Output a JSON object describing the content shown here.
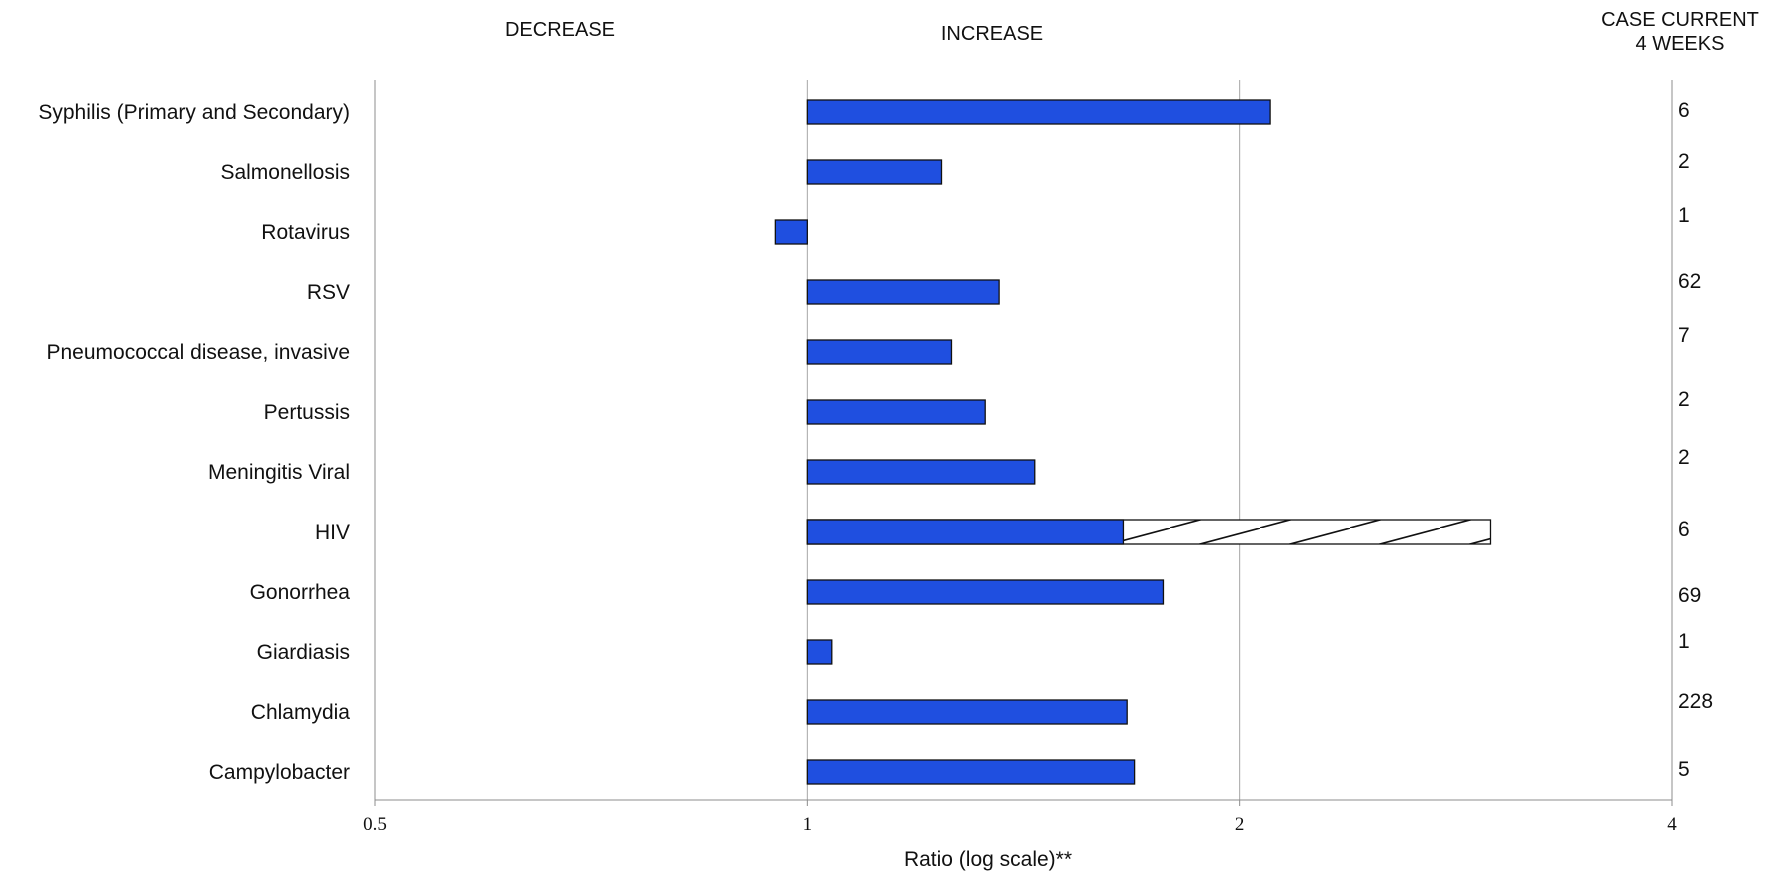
{
  "header": {
    "decrease_label": "DECREASE",
    "increase_label": "INCREASE",
    "count_header_line1": "CASE CURRENT",
    "count_header_line2": "4 WEEKS"
  },
  "colors": {
    "bar_fill": "#1f4fe0",
    "bar_stroke": "#111111",
    "gridline": "#a6a6a6",
    "axis": "#8c8c8c"
  },
  "chart_data": {
    "type": "bar",
    "orientation": "horizontal",
    "scale": "log",
    "baseline": 1,
    "xlim": [
      0.5,
      4
    ],
    "xticks": [
      0.5,
      1,
      2,
      4
    ],
    "xtick_labels": [
      "0.5",
      "1",
      "2",
      "4"
    ],
    "xlabel": "Ratio (log scale)**",
    "grid": "vertical at 1 and 2",
    "categories": [
      "Syphilis (Primary and Secondary)",
      "Salmonellosis",
      "Rotavirus",
      "RSV",
      "Pneumococcal disease, invasive",
      "Pertussis",
      "Meningitis Viral",
      "HIV",
      "Gonorrhea",
      "Giardiasis",
      "Chlamydia",
      "Campylobacter"
    ],
    "values": [
      2.1,
      1.24,
      0.95,
      1.36,
      1.26,
      1.33,
      1.44,
      1.66,
      1.77,
      1.04,
      1.67,
      1.69
    ],
    "beyond_historical_limits": [
      null,
      null,
      null,
      null,
      null,
      null,
      null,
      2.99,
      null,
      null,
      null,
      null
    ],
    "case_counts": [
      "6",
      "2",
      "1",
      "62",
      "7",
      "2",
      "2",
      "6",
      "69",
      "1",
      "228",
      "5"
    ]
  }
}
